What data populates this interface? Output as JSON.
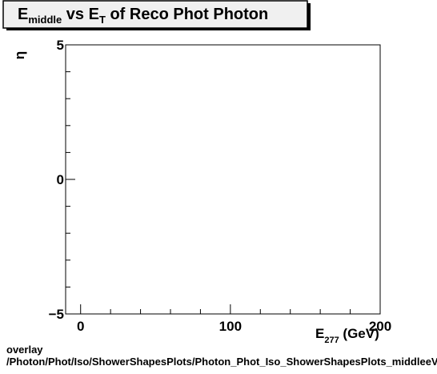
{
  "title": {
    "main": "E",
    "main_sub": "middle",
    "mid": " vs E",
    "mid_sub": "T",
    "rest": " of Reco Phot Photon"
  },
  "axes": {
    "x": {
      "label_main": "E",
      "label_sub": "277",
      "label_rest": " (GeV)"
    },
    "y": {
      "label": "η"
    }
  },
  "footer": {
    "line1": "overlay",
    "line2": "/Photon/Phot/Iso/ShowerShapesPlots/Photon_Phot_Iso_ShowerShapesPlots_middleeVsEtaEt"
  },
  "chart_data": {
    "type": "scatter",
    "title": "E_middle vs E_T of Reco Phot Photon",
    "xlabel": "E_277 (GeV)",
    "ylabel": "η",
    "xlim": [
      -10,
      200
    ],
    "ylim": [
      -5,
      5
    ],
    "x_ticks": [
      0,
      100,
      200
    ],
    "y_ticks": [
      -5,
      0,
      5
    ],
    "x_tick_labels": [
      "0",
      "100",
      "200"
    ],
    "y_tick_labels": [
      "−5",
      "0",
      "5"
    ],
    "x_minor_step": 20,
    "y_minor_step": 1,
    "grid": false,
    "series": [
      {
        "x": [],
        "y": []
      }
    ]
  }
}
